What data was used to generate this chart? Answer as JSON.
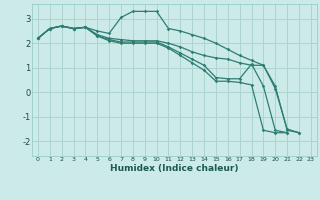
{
  "xlabel": "Humidex (Indice chaleur)",
  "background_color": "#cceae8",
  "grid_color": "#aed4d0",
  "line_color": "#2e7d72",
  "xlim": [
    -0.5,
    23.5
  ],
  "ylim": [
    -2.6,
    3.6
  ],
  "yticks": [
    -2,
    -1,
    0,
    1,
    2,
    3
  ],
  "xticks": [
    0,
    1,
    2,
    3,
    4,
    5,
    6,
    7,
    8,
    9,
    10,
    11,
    12,
    13,
    14,
    15,
    16,
    17,
    18,
    19,
    20,
    21,
    22,
    23
  ],
  "lines": [
    {
      "x": [
        0,
        1,
        2,
        3,
        4,
        5,
        6,
        7,
        8,
        9,
        10,
        11,
        12,
        13,
        14,
        15,
        16,
        17,
        18,
        19,
        20,
        21,
        22
      ],
      "y": [
        2.2,
        2.6,
        2.7,
        2.6,
        2.65,
        2.5,
        2.4,
        3.05,
        3.3,
        3.3,
        3.3,
        2.6,
        2.5,
        2.35,
        2.2,
        2.0,
        1.75,
        1.5,
        1.3,
        1.1,
        0.15,
        -1.5,
        -1.65
      ]
    },
    {
      "x": [
        0,
        1,
        2,
        3,
        4,
        5,
        6,
        7,
        8,
        9,
        10,
        11,
        12,
        13,
        14,
        15,
        16,
        17,
        18,
        19,
        20,
        21,
        22
      ],
      "y": [
        2.2,
        2.6,
        2.7,
        2.6,
        2.65,
        2.35,
        2.2,
        2.15,
        2.1,
        2.1,
        2.1,
        2.0,
        1.85,
        1.65,
        1.5,
        1.4,
        1.35,
        1.2,
        1.1,
        1.1,
        0.25,
        -1.55,
        -1.65
      ]
    },
    {
      "x": [
        0,
        1,
        2,
        3,
        4,
        5,
        6,
        7,
        8,
        9,
        10,
        11,
        12,
        13,
        14,
        15,
        16,
        17,
        18,
        19,
        20,
        21
      ],
      "y": [
        2.2,
        2.6,
        2.7,
        2.6,
        2.65,
        2.3,
        2.15,
        2.05,
        2.05,
        2.05,
        2.05,
        1.85,
        1.6,
        1.35,
        1.1,
        0.6,
        0.55,
        0.55,
        1.15,
        0.25,
        -1.55,
        -1.65
      ]
    },
    {
      "x": [
        0,
        1,
        2,
        3,
        4,
        5,
        6,
        7,
        8,
        9,
        10,
        11,
        12,
        13,
        14,
        15,
        16,
        17,
        18,
        19,
        20,
        21
      ],
      "y": [
        2.2,
        2.6,
        2.7,
        2.6,
        2.65,
        2.3,
        2.1,
        2.0,
        2.0,
        2.0,
        2.0,
        1.8,
        1.5,
        1.2,
        0.9,
        0.45,
        0.45,
        0.4,
        0.3,
        -1.55,
        -1.65,
        -1.65
      ]
    }
  ]
}
